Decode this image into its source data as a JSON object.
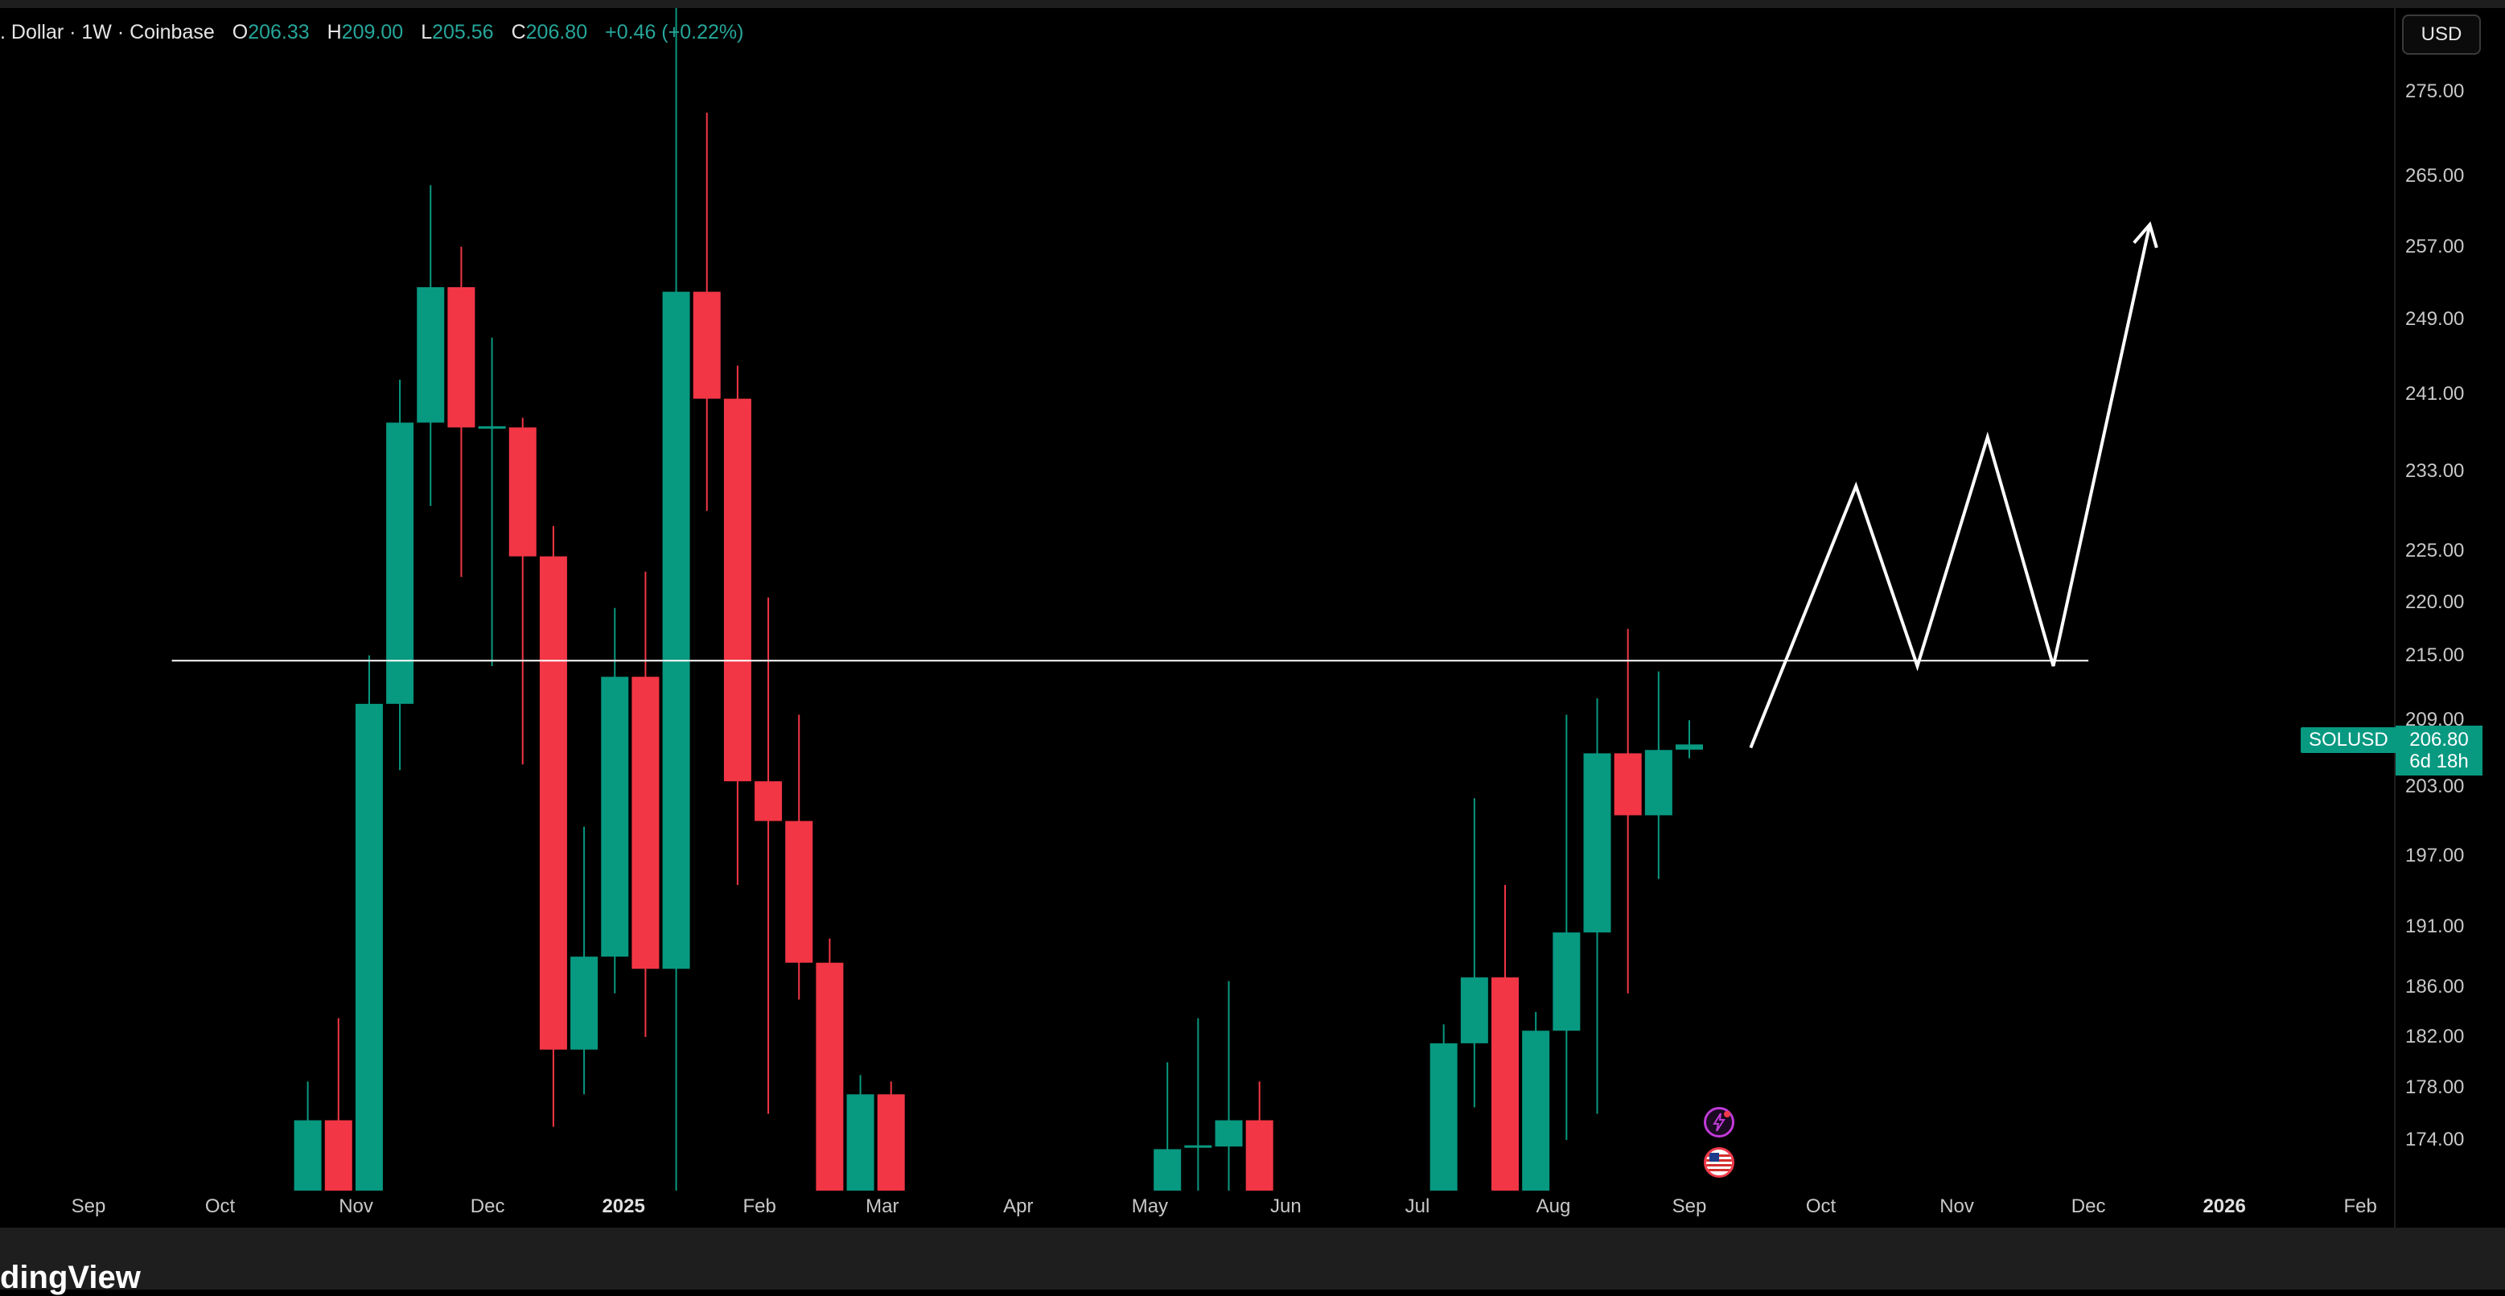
{
  "legend": {
    "symbol": ". Dollar · 1W · Coinbase",
    "open_key": "O",
    "open": "206.33",
    "high_key": "H",
    "high": "209.00",
    "low_key": "L",
    "low": "205.56",
    "close_key": "C",
    "close": "206.80",
    "change": "+0.46 (+0.22%)"
  },
  "currency": "USD",
  "current": {
    "symbol": "SOLUSD",
    "price": "206.80",
    "countdown": "6d 18h"
  },
  "brand": "dingView",
  "colors": {
    "up": "#089981",
    "down": "#f23645",
    "background": "#000000",
    "annotation": "#ffffff"
  },
  "icons": {
    "event_1": "flash-icon",
    "event_2": "us-flag-icon"
  },
  "chart_data": {
    "type": "candlestick",
    "scale": "log",
    "ylim": [
      170,
      280
    ],
    "y_ticks": [
      "275.00",
      "265.00",
      "257.00",
      "249.00",
      "241.00",
      "233.00",
      "225.00",
      "220.00",
      "215.00",
      "209.00",
      "203.00",
      "197.00",
      "191.00",
      "186.00",
      "182.00",
      "178.00",
      "174.00"
    ],
    "x_ticks": [
      {
        "label": "Sep",
        "date": "2024-09-01",
        "year": false
      },
      {
        "label": "Oct",
        "date": "2024-10-01",
        "year": false
      },
      {
        "label": "Nov",
        "date": "2024-11-01",
        "year": false
      },
      {
        "label": "Dec",
        "date": "2024-12-01",
        "year": false
      },
      {
        "label": "2025",
        "date": "2025-01-01",
        "year": true
      },
      {
        "label": "Feb",
        "date": "2025-02-01",
        "year": false
      },
      {
        "label": "Mar",
        "date": "2025-03-01",
        "year": false
      },
      {
        "label": "Apr",
        "date": "2025-04-01",
        "year": false
      },
      {
        "label": "May",
        "date": "2025-05-01",
        "year": false
      },
      {
        "label": "Jun",
        "date": "2025-06-01",
        "year": false
      },
      {
        "label": "Jul",
        "date": "2025-07-01",
        "year": false
      },
      {
        "label": "Aug",
        "date": "2025-08-01",
        "year": false
      },
      {
        "label": "Sep",
        "date": "2025-09-01",
        "year": false
      },
      {
        "label": "Oct",
        "date": "2025-10-01",
        "year": false
      },
      {
        "label": "Nov",
        "date": "2025-11-01",
        "year": false
      },
      {
        "label": "Dec",
        "date": "2025-12-01",
        "year": false
      },
      {
        "label": "2026",
        "date": "2026-01-01",
        "year": true
      },
      {
        "label": "Feb",
        "date": "2026-02-01",
        "year": false
      }
    ],
    "candles": [
      {
        "date": "2024-10-21",
        "open": 169,
        "high": 178.5,
        "low": 169,
        "close": 175.5
      },
      {
        "date": "2024-10-28",
        "open": 175.5,
        "high": 183.5,
        "low": 169,
        "close": 169
      },
      {
        "date": "2024-11-04",
        "open": 169,
        "high": 215,
        "low": 169,
        "close": 210.5
      },
      {
        "date": "2024-11-11",
        "open": 210.5,
        "high": 242.5,
        "low": 204.5,
        "close": 238
      },
      {
        "date": "2024-11-18",
        "open": 238,
        "high": 264,
        "low": 229.5,
        "close": 252.5
      },
      {
        "date": "2024-11-25",
        "open": 252.5,
        "high": 257,
        "low": 222.5,
        "close": 237.5
      },
      {
        "date": "2024-12-02",
        "open": 237.5,
        "high": 247,
        "low": 214,
        "close": 237.5
      },
      {
        "date": "2024-12-09",
        "open": 237.5,
        "high": 238.5,
        "low": 205,
        "close": 224.5
      },
      {
        "date": "2024-12-16",
        "open": 224.5,
        "high": 227.5,
        "low": 175,
        "close": 181
      },
      {
        "date": "2024-12-23",
        "open": 181,
        "high": 199.5,
        "low": 177.5,
        "close": 188.5
      },
      {
        "date": "2024-12-30",
        "open": 188.5,
        "high": 219.5,
        "low": 185.5,
        "close": 213
      },
      {
        "date": "2025-01-06",
        "open": 213,
        "high": 223,
        "low": 182,
        "close": 187.5
      },
      {
        "date": "2025-01-13",
        "open": 187.5,
        "high": 295,
        "low": 170,
        "close": 252
      },
      {
        "date": "2025-01-20",
        "open": 252,
        "high": 272.5,
        "low": 229,
        "close": 240.5
      },
      {
        "date": "2025-01-27",
        "open": 240.5,
        "high": 244,
        "low": 194.5,
        "close": 203.5
      },
      {
        "date": "2025-02-03",
        "open": 203.5,
        "high": 220.5,
        "low": 176,
        "close": 200
      },
      {
        "date": "2025-02-10",
        "open": 200,
        "high": 209.5,
        "low": 185,
        "close": 188
      },
      {
        "date": "2025-02-17",
        "open": 188,
        "high": 190,
        "low": 169,
        "close": 169
      },
      {
        "date": "2025-02-24",
        "open": 169,
        "high": 179,
        "low": 169,
        "close": 177.5
      },
      {
        "date": "2025-03-03",
        "open": 177.5,
        "high": 178.5,
        "low": 169,
        "close": 169
      },
      {
        "date": "2025-05-05",
        "open": 169,
        "high": 180,
        "low": 169,
        "close": 173.3
      },
      {
        "date": "2025-05-12",
        "open": 173.5,
        "high": 183.5,
        "low": 169,
        "close": 173.5
      },
      {
        "date": "2025-05-19",
        "open": 173.5,
        "high": 186.5,
        "low": 169,
        "close": 175.5
      },
      {
        "date": "2025-05-26",
        "open": 175.5,
        "high": 178.5,
        "low": 169,
        "close": 169
      },
      {
        "date": "2025-07-07",
        "open": 169,
        "high": 183,
        "low": 169,
        "close": 181.5
      },
      {
        "date": "2025-07-14",
        "open": 181.5,
        "high": 202,
        "low": 176.5,
        "close": 186.8
      },
      {
        "date": "2025-07-21",
        "open": 186.8,
        "high": 194.5,
        "low": 169,
        "close": 169
      },
      {
        "date": "2025-07-28",
        "open": 169,
        "high": 184,
        "low": 169,
        "close": 182.5
      },
      {
        "date": "2025-08-04",
        "open": 182.5,
        "high": 209.5,
        "low": 174,
        "close": 190.5
      },
      {
        "date": "2025-08-11",
        "open": 190.5,
        "high": 211,
        "low": 176,
        "close": 206
      },
      {
        "date": "2025-08-18",
        "open": 206,
        "high": 217.5,
        "low": 185.5,
        "close": 200.5
      },
      {
        "date": "2025-08-25",
        "open": 200.5,
        "high": 213.5,
        "low": 195,
        "close": 206.3
      },
      {
        "date": "2025-09-01",
        "open": 206.33,
        "high": 209,
        "low": 205.56,
        "close": 206.8
      }
    ],
    "hline": {
      "price": 214.5,
      "from": "2024-09-20",
      "to": "2025-12-01"
    },
    "projection_path": [
      {
        "date": "2025-09-15",
        "price": 206.5
      },
      {
        "date": "2025-10-09",
        "price": 231.5
      },
      {
        "date": "2025-10-23",
        "price": 214
      },
      {
        "date": "2025-11-08",
        "price": 236.5
      },
      {
        "date": "2025-11-23",
        "price": 214
      },
      {
        "date": "2025-12-15",
        "price": 259.5
      }
    ]
  }
}
